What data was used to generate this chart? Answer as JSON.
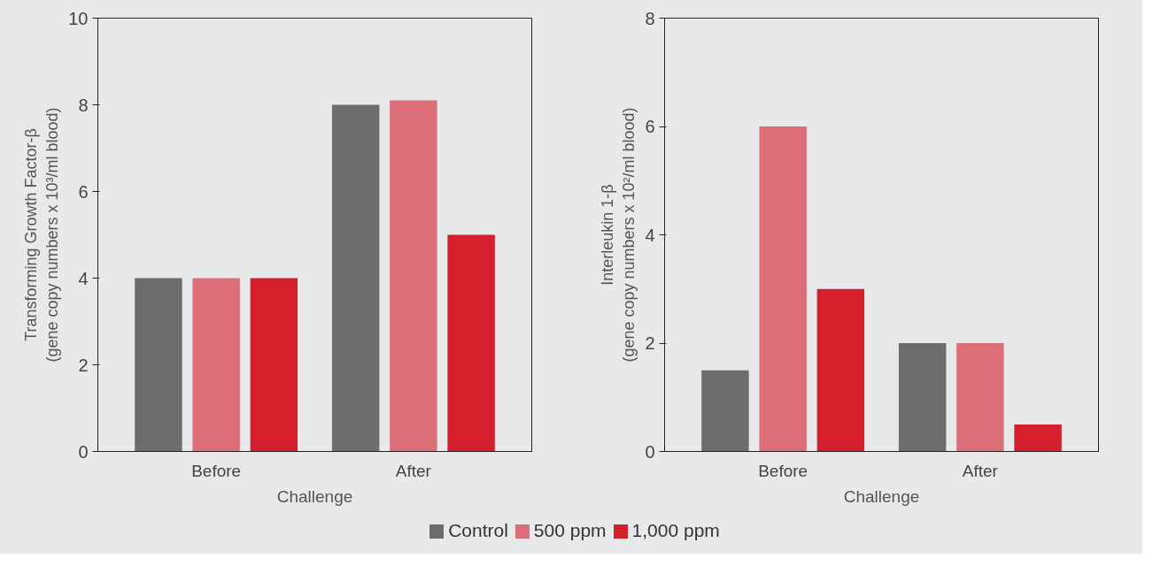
{
  "chart_data": [
    {
      "type": "bar",
      "categories": [
        "Before",
        "After"
      ],
      "xlabel": "Challenge",
      "ylabel": "Transforming Growth Factor-β\n(gene copy numbers x 10³/ml blood)",
      "ylim": [
        0,
        10
      ],
      "yticks": [
        0,
        2,
        4,
        6,
        8,
        10
      ],
      "grid": false,
      "legend": "bottom",
      "series": [
        {
          "name": "Control",
          "color": "#6d6d6b",
          "values": [
            4,
            8
          ]
        },
        {
          "name": "500 ppm",
          "color": "#dc6e78",
          "values": [
            4,
            8.1
          ]
        },
        {
          "name": "1,000 ppm",
          "color": "#d41f2d",
          "values": [
            4,
            5
          ]
        }
      ]
    },
    {
      "type": "bar",
      "categories": [
        "Before",
        "After"
      ],
      "xlabel": "Challenge",
      "ylabel": "Interleukin 1-β\n(gene copy numbers x 10²/ml blood)",
      "ylim": [
        0,
        8
      ],
      "yticks": [
        0,
        2,
        4,
        6,
        8
      ],
      "grid": false,
      "legend": "bottom",
      "series": [
        {
          "name": "Control",
          "color": "#6d6d6b",
          "values": [
            1.5,
            2
          ]
        },
        {
          "name": "500 ppm",
          "color": "#dc6e78",
          "values": [
            6,
            2
          ]
        },
        {
          "name": "1,000 ppm",
          "color": "#d41f2d",
          "values": [
            3,
            0.5
          ]
        }
      ]
    }
  ]
}
